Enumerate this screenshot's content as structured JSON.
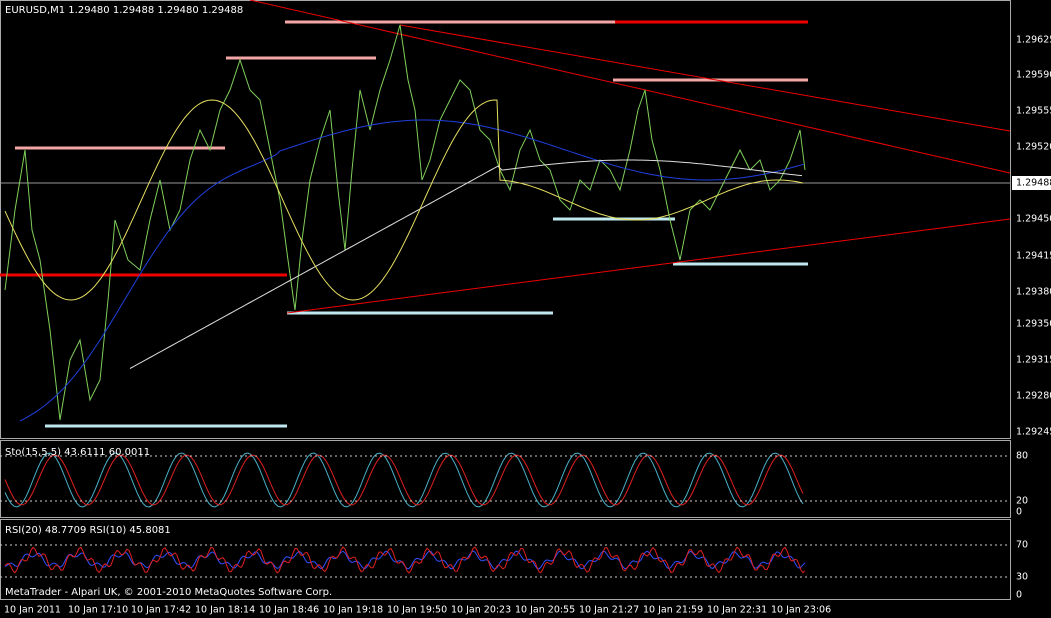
{
  "main": {
    "header": "EURUSD,M1  1.29480 1.29488 1.29480 1.29488",
    "price_labels": [
      "1.29625",
      "1.29590",
      "1.29555",
      "1.29520",
      "1.29450",
      "1.29415",
      "1.29380",
      "1.29350",
      "1.29315",
      "1.29280",
      "1.29245"
    ],
    "current_price": "1.29488",
    "footer": "MetaTrader - Alpari UK, © 2001-2010 MetaQuotes Software Corp."
  },
  "stochastic": {
    "header": "Sto(15,5,5) 43.6111 60.0011",
    "levels": [
      "80",
      "20",
      "0"
    ]
  },
  "rsi": {
    "header": "RSI(20) 48.7709  RSI(10) 45.8081",
    "levels": [
      "70",
      "30",
      "0"
    ]
  },
  "time_labels": [
    "10 Jan 2011",
    "10 Jan 17:10",
    "10 Jan 17:42",
    "10 Jan 18:14",
    "10 Jan 18:46",
    "10 Jan 19:18",
    "10 Jan 19:50",
    "10 Jan 20:23",
    "10 Jan 20:55",
    "10 Jan 21:27",
    "10 Jan 21:59",
    "10 Jan 22:31",
    "10 Jan 23:06"
  ]
}
